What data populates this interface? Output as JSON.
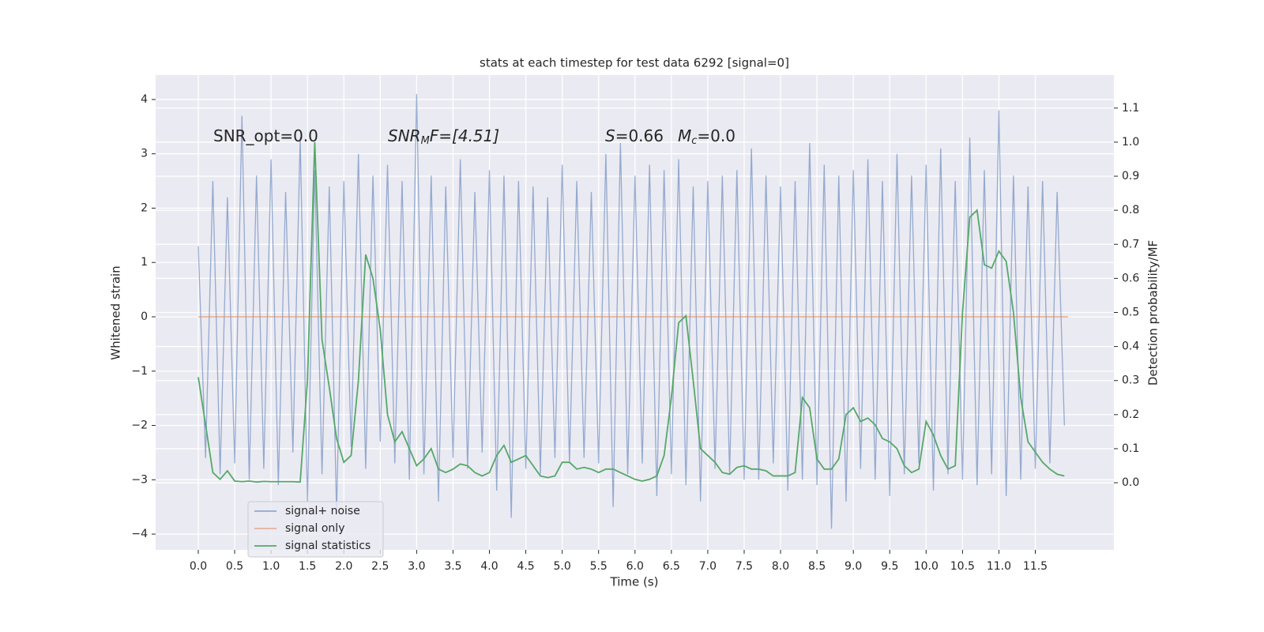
{
  "chart_data": {
    "type": "line",
    "title": "stats at each timestep for test data 6292 [signal=0]",
    "xlabel": "Time (s)",
    "ylabel": "Whitened strain",
    "y2label": "Detection probability/MF",
    "annotations": [
      [
        "SNR_opt=0.0"
      ],
      [
        "SNR",
        "M",
        "F=[4.51]"
      ],
      [
        "S",
        "=0.66"
      ],
      [
        "M",
        "c",
        "=0.0"
      ]
    ],
    "xlim": [
      -0.586,
      12.58
    ],
    "ylim": [
      -4.29,
      4.45
    ],
    "y2lim": [
      -0.197,
      1.197
    ],
    "xticks": [
      {
        "value": 0,
        "label": "0.0"
      },
      0.5,
      {
        "value": 1,
        "label": "1.0"
      },
      1.5,
      {
        "value": 2,
        "label": "2.0"
      },
      2.5,
      {
        "value": 3,
        "label": "3.0"
      },
      3.5,
      {
        "value": 4,
        "label": "4.0"
      },
      4.5,
      {
        "value": 5,
        "label": "5.0"
      },
      5.5,
      {
        "value": 6,
        "label": "6.0"
      },
      6.5,
      {
        "value": 7,
        "label": "7.0"
      },
      7.5,
      {
        "value": 8,
        "label": "8.0"
      },
      8.5,
      {
        "value": 9,
        "label": "9.0"
      },
      9.5,
      {
        "value": 10,
        "label": "10.0"
      },
      10.5,
      {
        "value": 11,
        "label": "11.0"
      },
      11.5
    ],
    "yticks": [
      {
        "value": -4,
        "label": "−4"
      },
      {
        "value": -3,
        "label": "−3"
      },
      {
        "value": -2,
        "label": "−2"
      },
      {
        "value": -1,
        "label": "−1"
      },
      0,
      1,
      2,
      3,
      4
    ],
    "y2ticks": [
      {
        "value": 0,
        "label": "0.0"
      },
      0.1,
      0.2,
      0.3,
      0.4,
      0.5,
      0.6,
      0.7,
      0.8,
      0.9,
      {
        "value": 1,
        "label": "1.0"
      },
      1.1
    ],
    "grid": true,
    "legend": "lower left",
    "x": [
      0,
      0.1,
      0.2,
      0.3,
      0.4,
      0.5,
      0.6,
      0.7,
      0.8,
      0.9,
      1,
      1.1,
      1.2,
      1.3,
      1.4,
      1.5,
      1.6,
      1.7,
      1.8,
      1.9,
      2,
      2.1,
      2.2,
      2.3,
      2.4,
      2.5,
      2.6,
      2.7,
      2.8,
      2.9,
      3,
      3.1,
      3.2,
      3.3,
      3.4,
      3.5,
      3.6,
      3.7,
      3.8,
      3.9,
      4,
      4.1,
      4.2,
      4.3,
      4.4,
      4.5,
      4.6,
      4.7,
      4.8,
      4.9,
      5,
      5.1,
      5.2,
      5.3,
      5.4,
      5.5,
      5.6,
      5.7,
      5.8,
      5.9,
      6,
      6.1,
      6.2,
      6.3,
      6.4,
      6.5,
      6.6,
      6.7,
      6.8,
      6.9,
      7,
      7.1,
      7.2,
      7.3,
      7.4,
      7.5,
      7.6,
      7.7,
      7.8,
      7.9,
      8,
      8.1,
      8.2,
      8.3,
      8.4,
      8.5,
      8.6,
      8.7,
      8.8,
      8.9,
      9,
      9.1,
      9.2,
      9.3,
      9.4,
      9.5,
      9.6,
      9.7,
      9.8,
      9.9,
      10,
      10.1,
      10.2,
      10.3,
      10.4,
      10.5,
      10.6,
      10.7,
      10.8,
      10.9,
      11,
      11.1,
      11.2,
      11.3,
      11.4,
      11.5,
      11.6,
      11.7,
      11.8,
      11.9
    ],
    "series": [
      {
        "name": "signal+ noise",
        "color": "#4c72b0",
        "values": [
          1.3,
          -2.6,
          2.5,
          -2.9,
          2.2,
          -2.7,
          3.7,
          -3.0,
          2.6,
          -2.8,
          2.9,
          -3.1,
          2.3,
          -2.5,
          3.3,
          -3.4,
          2.7,
          -2.9,
          2.4,
          -3.6,
          2.5,
          -2.4,
          3.0,
          -2.8,
          2.6,
          -2.3,
          2.8,
          -2.7,
          2.5,
          -3.0,
          4.1,
          -2.9,
          2.6,
          -3.4,
          2.4,
          -2.6,
          2.9,
          -2.8,
          2.3,
          -2.5,
          2.7,
          -3.2,
          2.6,
          -3.7,
          2.5,
          -2.8,
          2.4,
          -2.9,
          2.2,
          -2.6,
          2.8,
          -2.7,
          2.5,
          -2.6,
          2.3,
          -2.7,
          3.0,
          -3.5,
          3.2,
          -2.9,
          2.6,
          -2.7,
          2.8,
          -3.3,
          2.7,
          -2.9,
          2.9,
          -3.1,
          2.4,
          -3.4,
          2.5,
          -2.8,
          2.6,
          -2.9,
          2.7,
          -3.0,
          3.1,
          -3.0,
          2.6,
          -2.7,
          2.4,
          -3.2,
          2.5,
          -3.0,
          3.2,
          -3.1,
          2.8,
          -3.9,
          2.6,
          -3.4,
          2.7,
          -2.8,
          2.9,
          -3.0,
          2.5,
          -3.3,
          3.0,
          -2.9,
          2.6,
          -2.7,
          2.8,
          -3.2,
          3.1,
          -2.9,
          2.5,
          -3.0,
          3.3,
          -3.1,
          2.7,
          -2.9,
          3.8,
          -3.3,
          2.6,
          -3.0,
          2.4,
          -2.8,
          2.5,
          -2.7,
          2.3,
          -2.0
        ]
      },
      {
        "name": "signal only",
        "color": "#dd8452",
        "x": [
          0,
          11.95
        ],
        "values": [
          0,
          0
        ]
      },
      {
        "name": "signal statistics",
        "color": "#55a868",
        "axis": "y2",
        "values": [
          0.31,
          0.17,
          0.03,
          0.01,
          0.035,
          0.005,
          0.003,
          0.005,
          0.002,
          0.004,
          0.003,
          0.003,
          0.003,
          0.003,
          0.002,
          0.3,
          1.0,
          0.42,
          0.28,
          0.13,
          0.06,
          0.08,
          0.3,
          0.67,
          0.6,
          0.45,
          0.2,
          0.12,
          0.15,
          0.1,
          0.05,
          0.07,
          0.1,
          0.04,
          0.03,
          0.04,
          0.055,
          0.05,
          0.03,
          0.02,
          0.03,
          0.08,
          0.11,
          0.06,
          0.07,
          0.08,
          0.05,
          0.02,
          0.015,
          0.02,
          0.06,
          0.06,
          0.04,
          0.045,
          0.04,
          0.03,
          0.04,
          0.04,
          0.03,
          0.02,
          0.01,
          0.005,
          0.01,
          0.02,
          0.08,
          0.25,
          0.47,
          0.49,
          0.3,
          0.1,
          0.08,
          0.06,
          0.03,
          0.025,
          0.045,
          0.05,
          0.04,
          0.04,
          0.035,
          0.02,
          0.02,
          0.02,
          0.03,
          0.25,
          0.22,
          0.07,
          0.04,
          0.04,
          0.07,
          0.2,
          0.22,
          0.18,
          0.19,
          0.17,
          0.13,
          0.12,
          0.1,
          0.05,
          0.03,
          0.04,
          0.18,
          0.14,
          0.08,
          0.04,
          0.05,
          0.5,
          0.78,
          0.8,
          0.64,
          0.63,
          0.68,
          0.65,
          0.5,
          0.25,
          0.12,
          0.09,
          0.06,
          0.04,
          0.025,
          0.02
        ]
      }
    ]
  }
}
